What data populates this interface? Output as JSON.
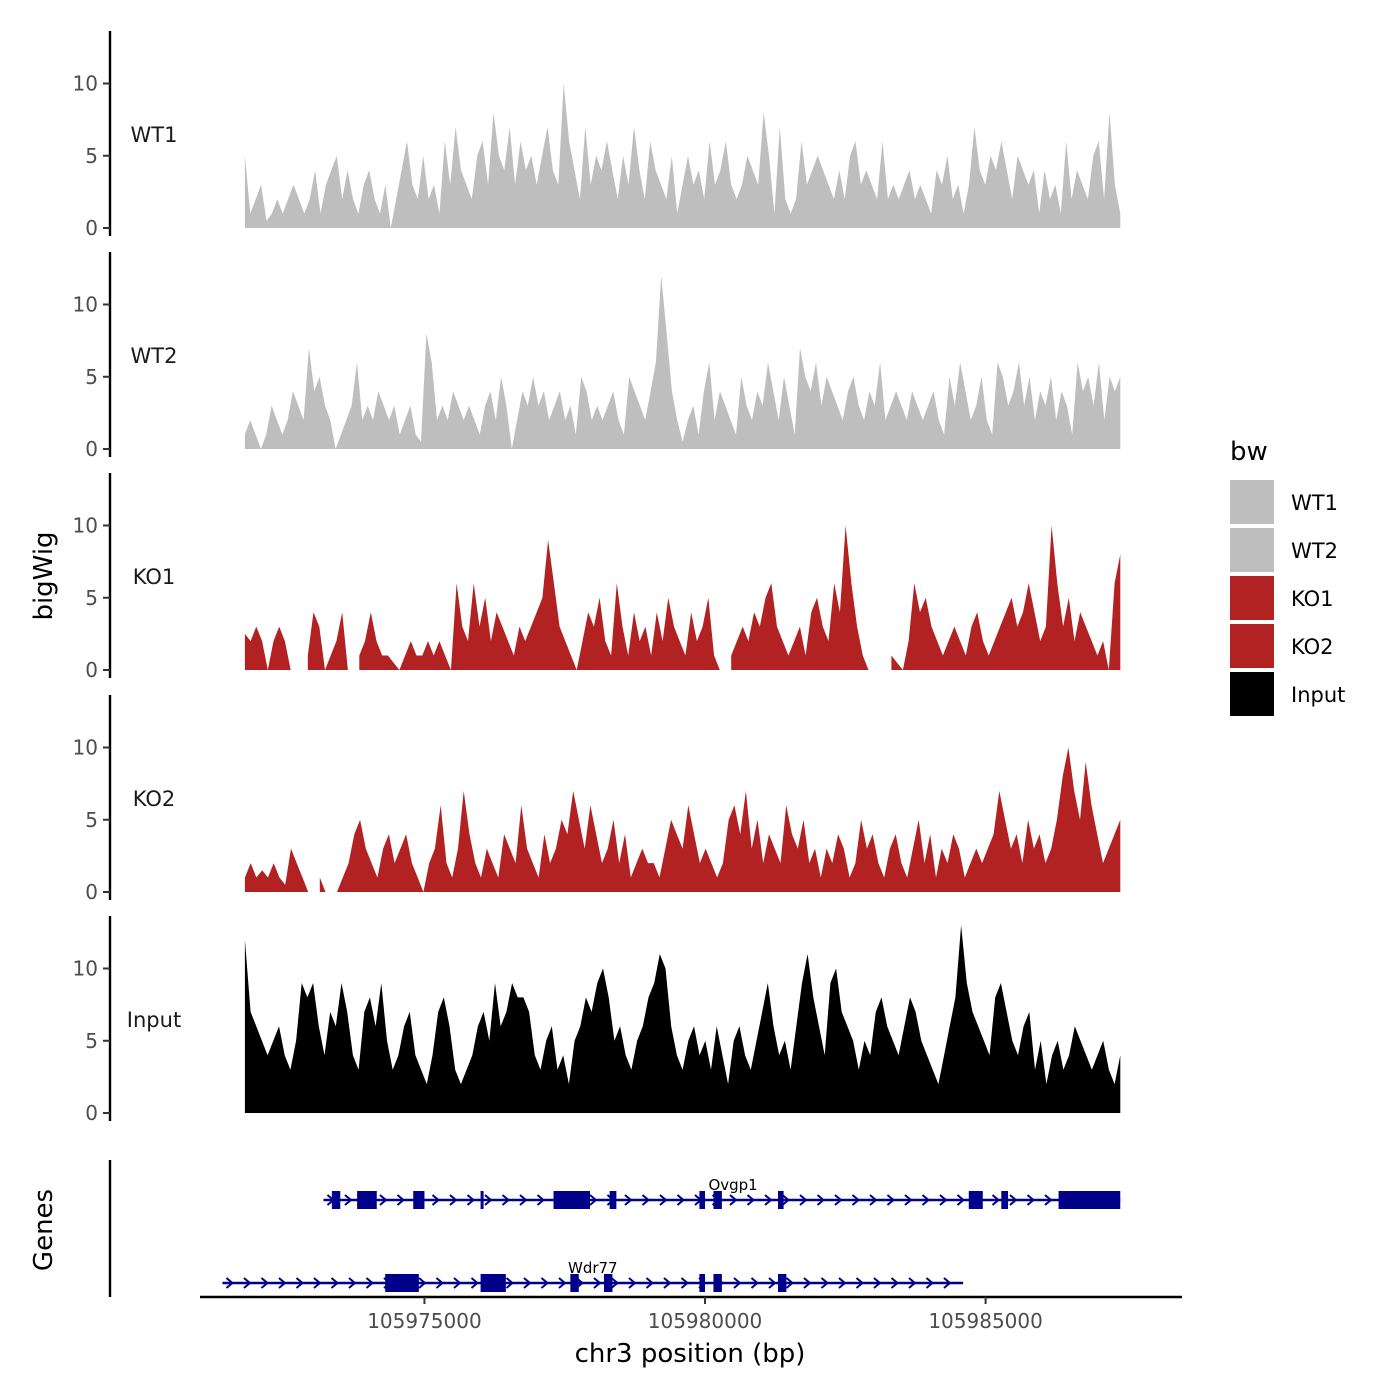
{
  "chart_data": {
    "type": "area",
    "subtype": "genome-coverage-tracks",
    "ylabel": "bigWig",
    "xlabel": "chr3 position (bp)",
    "genes_panel_label": "Genes",
    "xlim": [
      105971000,
      105988500
    ],
    "data_x_range": [
      105971800,
      105987400
    ],
    "x_ticks": [
      105975000,
      105980000,
      105985000
    ],
    "x_tick_labels": [
      "105975000",
      "105980000",
      "105985000"
    ],
    "ylim": [
      0,
      13.5
    ],
    "y_ticks": [
      0,
      5,
      10
    ],
    "y_tick_labels": [
      "0",
      "5",
      "10"
    ],
    "legend": {
      "title": "bw",
      "position": "right",
      "entries": [
        {
          "label": "WT1",
          "color": "#bebebe"
        },
        {
          "label": "WT2",
          "color": "#bebebe"
        },
        {
          "label": "KO1",
          "color": "#b22222"
        },
        {
          "label": "KO2",
          "color": "#b22222"
        },
        {
          "label": "Input",
          "color": "#000000"
        }
      ]
    },
    "series": [
      {
        "name": "WT1",
        "color": "#bebebe",
        "values": [
          5,
          1,
          2,
          3,
          0.5,
          1,
          2,
          1,
          2,
          3,
          2,
          1,
          2,
          4,
          1,
          3,
          4,
          5,
          2,
          4,
          2,
          1,
          3,
          4,
          2,
          1,
          3,
          0,
          2,
          4,
          6,
          3,
          2,
          5,
          2,
          3,
          1,
          6,
          3,
          7,
          4,
          3,
          2,
          5,
          6,
          3,
          8,
          5,
          4,
          7,
          3,
          6,
          4,
          5,
          3,
          5,
          7,
          4,
          3,
          10,
          6,
          4,
          2,
          7,
          3,
          5,
          4,
          6,
          4,
          2,
          5,
          3,
          7,
          4,
          2,
          6,
          4,
          3,
          2,
          5,
          1,
          3,
          5,
          3,
          4,
          2,
          6,
          3,
          4,
          6,
          3,
          2,
          3,
          5,
          4,
          3,
          8,
          5,
          1,
          7,
          2,
          1,
          2,
          6,
          3,
          4,
          5,
          4,
          3,
          2,
          4,
          2,
          5,
          6,
          3,
          4,
          3,
          2,
          6,
          2,
          3,
          2,
          3,
          4,
          2,
          3,
          2,
          1,
          4,
          3,
          5,
          2,
          3,
          1,
          3,
          7,
          4,
          3,
          5,
          4,
          6,
          4,
          2,
          5,
          4,
          3,
          4,
          1,
          4,
          2,
          3,
          1,
          6,
          2,
          4,
          3,
          2,
          5,
          6,
          2,
          8,
          3,
          1
        ]
      },
      {
        "name": "WT2",
        "color": "#bebebe",
        "values": [
          1,
          2,
          1,
          0,
          1,
          3,
          2,
          1,
          2,
          4,
          3,
          2,
          7,
          4,
          5,
          3,
          2,
          0,
          1,
          2,
          3,
          6,
          2,
          3,
          2,
          4,
          3,
          2,
          3,
          1,
          2,
          3,
          1,
          0.5,
          8,
          6,
          2,
          3,
          2,
          4,
          3,
          2,
          3,
          2,
          1,
          3,
          4,
          2,
          5,
          3,
          0,
          2,
          4,
          3,
          5,
          3,
          4,
          2,
          3,
          4,
          2,
          3,
          1,
          5,
          4,
          2,
          3,
          2,
          3,
          4,
          2,
          1,
          5,
          4,
          3,
          2,
          4,
          6,
          12,
          8,
          4,
          2,
          0.5,
          2,
          3,
          1,
          4,
          6,
          2,
          4,
          3,
          2,
          1,
          5,
          3,
          2,
          4,
          3,
          6,
          4,
          2,
          5,
          3,
          1,
          7,
          5,
          4,
          6,
          3,
          5,
          4,
          3,
          2,
          4,
          5,
          3,
          2,
          4,
          3,
          6,
          2,
          3,
          4,
          3,
          2,
          4,
          3,
          2,
          3,
          4,
          2,
          1,
          5,
          3,
          6,
          4,
          2,
          3,
          5,
          2,
          1,
          6,
          5,
          3,
          4,
          6,
          3,
          5,
          2,
          4,
          3,
          5,
          2,
          4,
          3,
          1,
          6,
          4,
          5,
          3,
          6,
          2,
          5,
          4,
          5
        ]
      },
      {
        "name": "KO1",
        "color": "#b22222",
        "values": [
          2.5,
          2,
          3,
          2,
          0,
          2,
          3,
          2,
          0,
          null,
          null,
          1,
          4,
          3,
          0,
          1,
          2,
          4,
          0,
          null,
          1,
          2,
          4,
          2,
          1,
          1,
          0.5,
          0,
          1,
          2,
          1,
          1,
          2,
          1,
          2,
          1,
          0,
          6,
          3,
          2,
          6,
          3,
          5,
          2,
          4,
          3,
          2,
          1,
          3,
          2,
          3,
          4,
          5,
          9,
          6,
          3,
          2,
          1,
          0,
          2,
          4,
          3,
          5,
          2,
          1,
          6,
          3,
          1,
          4,
          2,
          3,
          1,
          4,
          2,
          5,
          3,
          2,
          1,
          4,
          2,
          3,
          5,
          1,
          0,
          null,
          1,
          2,
          3,
          2,
          4,
          3,
          5,
          6,
          3,
          2,
          1,
          2,
          3,
          1,
          4,
          5,
          3,
          2,
          6,
          4,
          10,
          6,
          3,
          1,
          0,
          null,
          null,
          null,
          1,
          0.5,
          0,
          2,
          6,
          4,
          5,
          3,
          2,
          1,
          2,
          3,
          2,
          1,
          3,
          4,
          2,
          1,
          2,
          3,
          4,
          5,
          3,
          4,
          6,
          4,
          2,
          3,
          10,
          6,
          3,
          5,
          2,
          4,
          3,
          2,
          1,
          2,
          0,
          6,
          8
        ]
      },
      {
        "name": "KO2",
        "color": "#b22222",
        "values": [
          1,
          2,
          1,
          1.5,
          1,
          2,
          1,
          0.5,
          3,
          2,
          1,
          0,
          null,
          1,
          0,
          null,
          0,
          1,
          2,
          4,
          5,
          3,
          2,
          1,
          3,
          4,
          2,
          3,
          4,
          2,
          1,
          0,
          2,
          3,
          6,
          2,
          1,
          3,
          7,
          4,
          2,
          1,
          3,
          2,
          1,
          4,
          3,
          2,
          6,
          3,
          2,
          1,
          4,
          2,
          3,
          5,
          4,
          7,
          5,
          3,
          6,
          4,
          2,
          3,
          5,
          2,
          4,
          1,
          2,
          3,
          2,
          2,
          1,
          3,
          5,
          4,
          3,
          6,
          4,
          2,
          3,
          2,
          1,
          2,
          5,
          6,
          4,
          7,
          3,
          5,
          2,
          4,
          3,
          2,
          6,
          4,
          3,
          5,
          2,
          3,
          1,
          3,
          2,
          4,
          3,
          1,
          2,
          5,
          3,
          4,
          2,
          1,
          3,
          4,
          2,
          1,
          3,
          5,
          2,
          4,
          1,
          3,
          2,
          4,
          3,
          1,
          2,
          3,
          2,
          3,
          4,
          7,
          5,
          3,
          4,
          2,
          5,
          3,
          4,
          2,
          3,
          5,
          8,
          10,
          7,
          5,
          9,
          6,
          4,
          2,
          3,
          4,
          5
        ]
      },
      {
        "name": "Input",
        "color": "#000000",
        "values": [
          12,
          7,
          6,
          5,
          4,
          5,
          6,
          4,
          3,
          5,
          9,
          8,
          9,
          6,
          4,
          7,
          6,
          9,
          7,
          4,
          3,
          7,
          8,
          6,
          9,
          5,
          3,
          4,
          6,
          7,
          4,
          3,
          2,
          4,
          7,
          8,
          6,
          3,
          2,
          3,
          4,
          6,
          7,
          5,
          9,
          6,
          7,
          9,
          8,
          8,
          7,
          4,
          3,
          5,
          6,
          3,
          4,
          2,
          5,
          6,
          8,
          7,
          9,
          10,
          8,
          5,
          6,
          4,
          3,
          5,
          6,
          8,
          9,
          11,
          10,
          6,
          4,
          3,
          5,
          6,
          4,
          5,
          3,
          6,
          4,
          2,
          5,
          6,
          4,
          3,
          5,
          7,
          9,
          6,
          4,
          5,
          3,
          6,
          9,
          11,
          8,
          6,
          4,
          9,
          10,
          7,
          6,
          5,
          3,
          5,
          4,
          7,
          8,
          6,
          5,
          4,
          6,
          8,
          7,
          5,
          4,
          3,
          2,
          4,
          6,
          8,
          13,
          9,
          7,
          6,
          5,
          4,
          8,
          9,
          7,
          5,
          4,
          6,
          7,
          3,
          5,
          2,
          4,
          5,
          3,
          4,
          6,
          5,
          4,
          3,
          4,
          5,
          3,
          2,
          4
        ]
      }
    ],
    "genes": [
      {
        "name": "Ovgp1",
        "start": 105973200,
        "end": 105987400,
        "exons": [
          [
            105973350,
            105973500
          ],
          [
            105973800,
            105974150
          ],
          [
            105974800,
            105975000
          ],
          [
            105976000,
            105976050
          ],
          [
            105977300,
            105977950
          ],
          [
            105978300,
            105978420
          ],
          [
            105979900,
            105980000
          ],
          [
            105980150,
            105980300
          ],
          [
            105981300,
            105981400
          ],
          [
            105984700,
            105984950
          ],
          [
            105985280,
            105985400
          ],
          [
            105986300,
            105987400
          ]
        ],
        "label_x": 105980500
      },
      {
        "name": "Wdr77",
        "start": 105971400,
        "end": 105984600,
        "exons": [
          [
            105974300,
            105974900
          ],
          [
            105976000,
            105976450
          ],
          [
            105977600,
            105977750
          ],
          [
            105978200,
            105978350
          ],
          [
            105979900,
            105980000
          ],
          [
            105980150,
            105980300
          ],
          [
            105981300,
            105981450
          ]
        ],
        "label_x": 105978000
      }
    ]
  }
}
